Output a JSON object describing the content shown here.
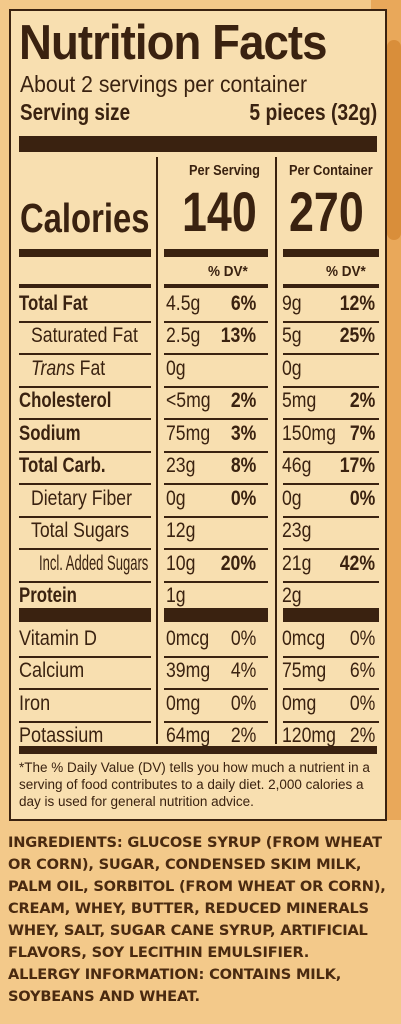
{
  "label": {
    "title": "Nutrition Facts",
    "servings_per_container": "About 2 servings per container",
    "serving_size_label": "Serving size",
    "serving_size_value": "5 pieces (32g)",
    "col_per_serving": "Per Serving",
    "col_per_container": "Per Container",
    "calories_label": "Calories",
    "calories_serving": "140",
    "calories_container": "270",
    "dv_header": "% DV*",
    "nutrients": [
      {
        "name": "Total Fat",
        "s_amt": "4.5g",
        "s_dv": "6%",
        "c_amt": "9g",
        "c_dv": "12%"
      },
      {
        "name": "Saturated Fat",
        "s_amt": "2.5g",
        "s_dv": "13%",
        "c_amt": "5g",
        "c_dv": "25%"
      },
      {
        "name_italic": "Trans",
        "name_rest": " Fat",
        "s_amt": "0g",
        "c_amt": "0g"
      },
      {
        "name": "Cholesterol",
        "s_amt": "<5mg",
        "s_dv": "2%",
        "c_amt": "5mg",
        "c_dv": "2%"
      },
      {
        "name": "Sodium",
        "s_amt": "75mg",
        "s_dv": "3%",
        "c_amt": "150mg",
        "c_dv": "7%"
      },
      {
        "name": "Total Carb.",
        "s_amt": "23g",
        "s_dv": "8%",
        "c_amt": "46g",
        "c_dv": "17%"
      },
      {
        "name": "Dietary Fiber",
        "s_amt": "0g",
        "s_dv": "0%",
        "c_amt": "0g",
        "c_dv": "0%"
      },
      {
        "name": "Total Sugars",
        "s_amt": "12g",
        "c_amt": "23g"
      },
      {
        "name": "Incl. Added Sugars",
        "s_amt": "10g",
        "s_dv": "20%",
        "c_amt": "21g",
        "c_dv": "42%"
      },
      {
        "name": "Protein",
        "s_amt": "1g",
        "c_amt": "2g"
      }
    ],
    "vitamins": [
      {
        "name": "Vitamin D",
        "s_amt": "0mcg",
        "s_dv": "0%",
        "c_amt": "0mcg",
        "c_dv": "0%"
      },
      {
        "name": "Calcium",
        "s_amt": "39mg",
        "s_dv": "4%",
        "c_amt": "75mg",
        "c_dv": "6%"
      },
      {
        "name": "Iron",
        "s_amt": "0mg",
        "s_dv": "0%",
        "c_amt": "0mg",
        "c_dv": "0%"
      },
      {
        "name": "Potassium",
        "s_amt": "64mg",
        "s_dv": "2%",
        "c_amt": "120mg",
        "c_dv": "2%"
      }
    ],
    "footnote": "*The % Daily Value (DV) tells you how much a nutrient in a serving of food contributes to a daily diet. 2,000 calories a day is used for general nutrition advice."
  },
  "ingredients": "INGREDIENTS: GLUCOSE SYRUP (FROM WHEAT OR CORN), SUGAR, CONDENSED SKIM MILK, PALM OIL, SORBITOL (FROM WHEAT OR CORN), CREAM, WHEY, BUTTER, REDUCED MINERALS WHEY, SALT, SUGAR CANE SYRUP, ARTIFICIAL FLAVORS, SOY LECITHIN EMULSIFIER.",
  "allergy": "ALLERGY INFORMATION: CONTAINS MILK, SOYBEANS AND WHEAT.",
  "colors": {
    "label_bg": "#f8dfb0",
    "ink": "#3a2210",
    "package": "#f3c98a"
  }
}
